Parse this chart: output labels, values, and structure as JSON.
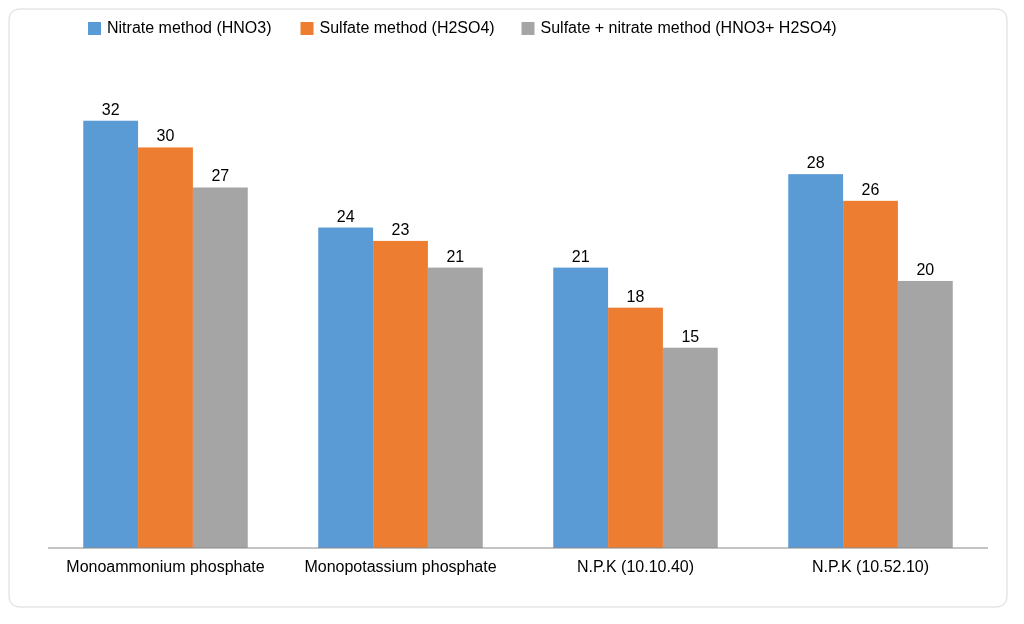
{
  "chart_data": {
    "type": "bar",
    "categories": [
      "Monoammonium phosphate",
      "Monopotassium phosphate",
      "N.P.K (10.10.40)",
      "N.P.K (10.52.10)"
    ],
    "series": [
      {
        "name": "Nitrate method (HNO3)",
        "color": "#5b9bd5",
        "values": [
          32,
          24,
          21,
          28
        ]
      },
      {
        "name": "Sulfate method (H2SO4)",
        "color": "#ed7d31",
        "values": [
          30,
          23,
          18,
          26
        ]
      },
      {
        "name": "Sulfate + nitrate method (HNO3+ H2SO4)",
        "color": "#a5a5a5",
        "values": [
          27,
          21,
          15,
          20
        ]
      }
    ],
    "data_labels": true,
    "legend": "top",
    "grid": false
  }
}
